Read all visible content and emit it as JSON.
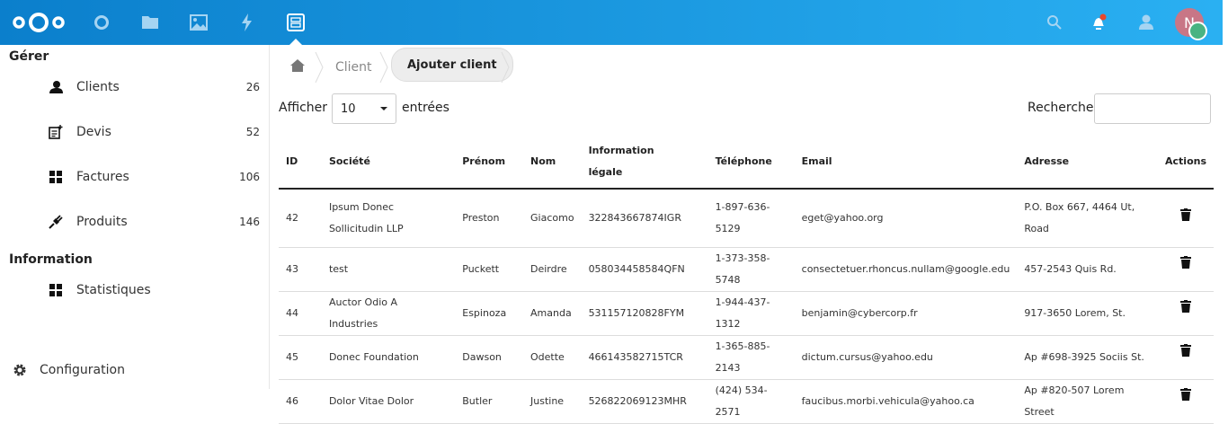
{
  "header": {
    "icons": [
      "nextcloud-logo",
      "dashboard-icon",
      "files-icon",
      "photos-icon",
      "activity-icon",
      "gestion-icon"
    ],
    "right_icons": [
      "search-icon",
      "notifications-icon",
      "contacts-icon"
    ],
    "avatar_initial": "N",
    "colors": {
      "gradient_start": "#0b7fcc",
      "gradient_end": "#2ab0f2",
      "notification": "#e9472a",
      "status": "#49b382",
      "avatar": "#c87686"
    }
  },
  "sidebar": {
    "section1": "Gérer",
    "items": [
      {
        "label": "Clients",
        "count": "26",
        "icon": "user-icon"
      },
      {
        "label": "Devis",
        "count": "52",
        "icon": "quote-icon"
      },
      {
        "label": "Factures",
        "count": "106",
        "icon": "grid-icon"
      },
      {
        "label": "Produits",
        "count": "146",
        "icon": "plug-icon"
      }
    ],
    "section2": "Information",
    "info_items": [
      {
        "label": "Statistiques",
        "icon": "grid-icon"
      }
    ],
    "settings": "Configuration"
  },
  "breadcrumb": {
    "items": [
      "Client"
    ],
    "action": "Ajouter client"
  },
  "controls": {
    "show_label": "Afficher",
    "page_size": "10",
    "entries_label": "entrées",
    "search_label": "Recherche",
    "search_value": ""
  },
  "table": {
    "headers": [
      "ID",
      "Société",
      "Prénom",
      "Nom",
      "Information légale",
      "Téléphone",
      "Email",
      "Adresse",
      "Actions"
    ],
    "rows": [
      [
        "42",
        "Ipsum Donec Sollicitudin LLP",
        "Preston",
        "Giacomo",
        "322843667874IGR",
        "1-897-636-5129",
        "eget@yahoo.org",
        "P.O. Box 667, 4464 Ut, Road"
      ],
      [
        "43",
        "test",
        "Puckett",
        "Deirdre",
        "058034458584QFN",
        "1-373-358-5748",
        "consectetuer.rhoncus.nullam@google.edu",
        "457-2543 Quis Rd."
      ],
      [
        "44",
        "Auctor Odio A Industries",
        "Espinoza",
        "Amanda",
        "531157120828FYM",
        "1-944-437-1312",
        "benjamin@cybercorp.fr",
        "917-3650 Lorem, St."
      ],
      [
        "45",
        "Donec Foundation",
        "Dawson",
        "Odette",
        "466143582715TCR",
        "1-365-885-2143",
        "dictum.cursus@yahoo.edu",
        "Ap #698-3925 Sociis St."
      ],
      [
        "46",
        "Dolor Vitae Dolor",
        "Butler",
        "Justine",
        "526822069123MHR",
        "(424) 534-2571",
        "faucibus.morbi.vehicula@yahoo.ca",
        "Ap #820-507 Lorem Street"
      ]
    ]
  }
}
